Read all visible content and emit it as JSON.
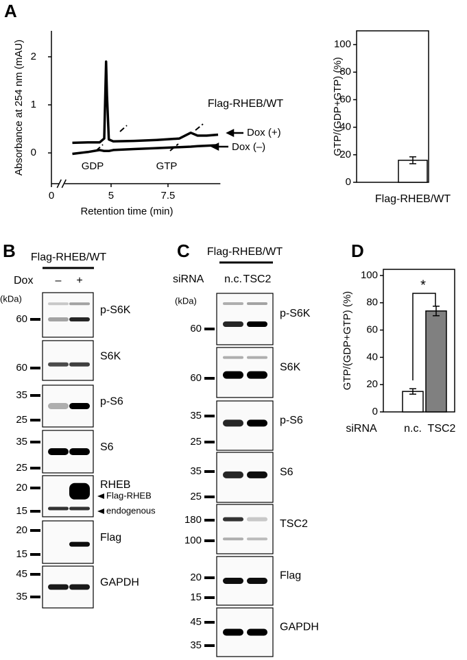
{
  "panel_labels": {
    "a": "A",
    "b": "B",
    "c": "C",
    "d": "D"
  },
  "chart_data": [
    {
      "type": "line",
      "title": "Flag-RHEB/WT",
      "xlabel": "Retention time (min)",
      "ylabel": "Absorbance at 254 nm (mAU)",
      "x": [
        3.3,
        4.0,
        4.5,
        4.7,
        4.78,
        4.82,
        4.9,
        5.1,
        6.0,
        7.0,
        8.0,
        8.5,
        8.8,
        9.2,
        9.7
      ],
      "series": [
        {
          "name": "Dox (+)",
          "color": "#000000",
          "values": [
            0.21,
            0.22,
            0.22,
            0.3,
            1.9,
            1.2,
            0.28,
            0.24,
            0.25,
            0.27,
            0.3,
            0.42,
            0.36,
            0.36,
            0.38
          ]
        },
        {
          "name": "Dox (–)",
          "color": "#000000",
          "values": [
            -0.02,
            0.02,
            0.06,
            0.04,
            0.04,
            0.04,
            0.04,
            0.06,
            0.08,
            0.1,
            0.12,
            0.13,
            0.14,
            0.15,
            0.16
          ]
        }
      ],
      "annotations": [
        "GDP",
        "GTP"
      ],
      "xlim": [
        0,
        9.8
      ],
      "xbreak": [
        0.4,
        2.78
      ],
      "xticks": [
        0,
        5,
        7.5
      ],
      "ylim": [
        -0.64,
        2.54
      ],
      "yticks": [
        0,
        1,
        2
      ]
    },
    {
      "type": "bar",
      "ylabel": "GTP/(GDP+GTP) (%)",
      "categories": [
        "Flag-RHEB/WT"
      ],
      "values": [
        16
      ],
      "errors": [
        2.5
      ],
      "colors": [
        "#ffffff"
      ],
      "ylim": [
        0,
        110
      ],
      "yticks": [
        0,
        20,
        40,
        60,
        80,
        100
      ]
    },
    {
      "type": "bar",
      "ylabel": "GTP/(GDP+GTP) (%)",
      "xlabel": "siRNA",
      "categories": [
        "n.c.",
        "TSC2"
      ],
      "values": [
        15,
        74
      ],
      "errors": [
        2,
        3.5
      ],
      "colors": [
        "#ffffff",
        "#808080"
      ],
      "significance": "*",
      "ylim": [
        0,
        104.5
      ],
      "yticks": [
        0,
        20,
        40,
        60,
        80,
        100
      ]
    }
  ],
  "blots": [
    {
      "construct": "Flag-RHEB/WT",
      "condition": "Dox",
      "lanes": [
        "–",
        "+"
      ],
      "unit": "(kDa)",
      "rows": [
        {
          "name": "p-S6K",
          "markers": [
            "60"
          ]
        },
        {
          "name": "S6K",
          "markers": [
            "60"
          ]
        },
        {
          "name": "p-S6",
          "markers": [
            "35",
            "25"
          ]
        },
        {
          "name": "S6",
          "markers": [
            "35",
            "25"
          ]
        },
        {
          "name": "RHEB",
          "markers": [
            "20",
            "15"
          ],
          "annotations": [
            "Flag-RHEB",
            "endogenous"
          ]
        },
        {
          "name": "Flag",
          "markers": [
            "20",
            "15"
          ]
        },
        {
          "name": "GAPDH",
          "markers": [
            "45",
            "35"
          ]
        }
      ]
    },
    {
      "construct": "Flag-RHEB/WT",
      "condition": "siRNA",
      "lanes": [
        "n.c.",
        "TSC2"
      ],
      "unit": "(kDa)",
      "rows": [
        {
          "name": "p-S6K",
          "markers": [
            "60"
          ]
        },
        {
          "name": "S6K",
          "markers": [
            "60"
          ]
        },
        {
          "name": "p-S6",
          "markers": [
            "35",
            "25"
          ]
        },
        {
          "name": "S6",
          "markers": [
            "35",
            "25"
          ]
        },
        {
          "name": "TSC2",
          "markers": [
            "180",
            "100"
          ]
        },
        {
          "name": "Flag",
          "markers": [
            "20",
            "15"
          ]
        },
        {
          "name": "GAPDH",
          "markers": [
            "45",
            "35"
          ]
        }
      ]
    }
  ]
}
